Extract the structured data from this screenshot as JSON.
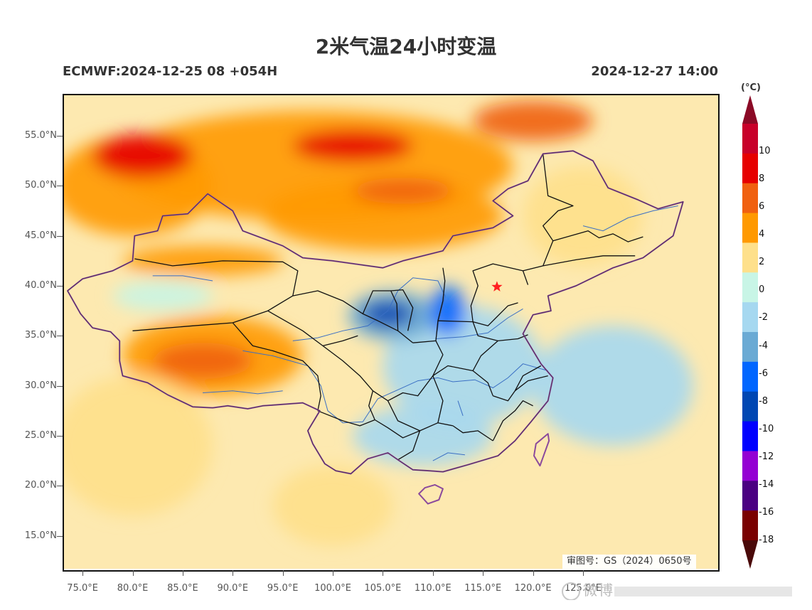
{
  "title": "2米气温24小时变温",
  "run_info": "ECMWF:2024-12-25 08 +054H",
  "valid_time": "2024-12-27 14:00",
  "approval_number": "审图号：GS（2024）0650号",
  "watermark": "微博",
  "colorbar": {
    "unit": "(°C)",
    "colors": [
      "#4a0a0a",
      "#7a0000",
      "#4b0082",
      "#9400d3",
      "#0000ff",
      "#0047b3",
      "#0066ff",
      "#6aaad4",
      "#a6d8f0",
      "#c8f5e6",
      "#fee08b",
      "#ff9900",
      "#f06010",
      "#e60000",
      "#c8002a",
      "#8b0a26"
    ],
    "labels": [
      {
        "text": "10",
        "value": 10
      },
      {
        "text": "8",
        "value": 8
      },
      {
        "text": "6",
        "value": 6
      },
      {
        "text": "4",
        "value": 4
      },
      {
        "text": "2",
        "value": 2
      },
      {
        "text": "0",
        "value": 0
      },
      {
        "text": "-2",
        "value": -2
      },
      {
        "text": "-4",
        "value": -4
      },
      {
        "text": "-6",
        "value": -6
      },
      {
        "text": "-8",
        "value": -8
      },
      {
        "text": "-10",
        "value": -10
      },
      {
        "text": "-12",
        "value": -12
      },
      {
        "text": "-14",
        "value": -14
      },
      {
        "text": "-16",
        "value": -16
      },
      {
        "text": "-18",
        "value": -18
      }
    ]
  },
  "map": {
    "extent": {
      "lon_min": 73,
      "lon_max": 138.5,
      "lat_min": 11.7,
      "lat_max": 59.2
    },
    "lat_ticks": [
      {
        "label": "55.0°N",
        "value": 55
      },
      {
        "label": "50.0°N",
        "value": 50
      },
      {
        "label": "45.0°N",
        "value": 45
      },
      {
        "label": "40.0°N",
        "value": 40
      },
      {
        "label": "35.0°N",
        "value": 35
      },
      {
        "label": "30.0°N",
        "value": 30
      },
      {
        "label": "25.0°N",
        "value": 25
      },
      {
        "label": "20.0°N",
        "value": 20
      },
      {
        "label": "15.0°N",
        "value": 15
      }
    ],
    "lon_ticks": [
      {
        "label": "75.0°E",
        "value": 75
      },
      {
        "label": "80.0°E",
        "value": 80
      },
      {
        "label": "85.0°E",
        "value": 85
      },
      {
        "label": "90.0°E",
        "value": 90
      },
      {
        "label": "95.0°E",
        "value": 95
      },
      {
        "label": "100.0°E",
        "value": 100
      },
      {
        "label": "105.0°E",
        "value": 105
      },
      {
        "label": "110.0°E",
        "value": 110
      },
      {
        "label": "115.0°E",
        "value": 115
      },
      {
        "label": "120.0°E",
        "value": 120
      },
      {
        "label": "125.0°E",
        "value": 125
      }
    ],
    "background_color": "#fde9b0",
    "colors": {
      "national_border": "#8b4a9c",
      "province_border": "#111111",
      "river": "#3a6fc4",
      "capital_marker": "#ff2020"
    },
    "capital": {
      "name": "北京",
      "lon": 116.4,
      "lat": 39.9
    },
    "temperature_regions": [
      {
        "name": "siberia-warm",
        "value": 3,
        "lon": 98,
        "lat": 52,
        "rx": 20,
        "ry": 5.5
      },
      {
        "name": "kazakh-warm",
        "value": 3,
        "lon": 80,
        "lat": 50,
        "rx": 8,
        "ry": 5
      },
      {
        "name": "mongolia-warm",
        "value": 3,
        "lon": 105,
        "lat": 47,
        "rx": 12,
        "ry": 3.5
      },
      {
        "name": "kazakh-hot",
        "value": 7,
        "lon": 81,
        "lat": 53,
        "rx": 5,
        "ry": 2.2
      },
      {
        "name": "altai-hot",
        "value": 7,
        "lon": 102,
        "lat": 54,
        "rx": 6,
        "ry": 1.6
      },
      {
        "name": "mongolia-hot",
        "value": 5,
        "lon": 107,
        "lat": 49.5,
        "rx": 5,
        "ry": 1.3
      },
      {
        "name": "xinjiang-warm",
        "value": 3,
        "lon": 87,
        "lat": 42.5,
        "rx": 8,
        "ry": 1.5
      },
      {
        "name": "tibet-warm",
        "value": 3,
        "lon": 88,
        "lat": 33,
        "rx": 9,
        "ry": 4
      },
      {
        "name": "tibet-hot",
        "value": 5,
        "lon": 87,
        "lat": 32.5,
        "rx": 5,
        "ry": 1.8
      },
      {
        "name": "tarim-cool",
        "value": -1,
        "lon": 83,
        "lat": 39,
        "rx": 5,
        "ry": 1.5
      },
      {
        "name": "east-china-cool",
        "value": -3,
        "lon": 113,
        "lat": 32,
        "rx": 8,
        "ry": 6
      },
      {
        "name": "south-china-cool",
        "value": -3,
        "lon": 109,
        "lat": 25,
        "rx": 7,
        "ry": 3
      },
      {
        "name": "yellow-river-cold",
        "value": -6,
        "lon": 106,
        "lat": 37,
        "rx": 4.5,
        "ry": 2.5
      },
      {
        "name": "shanxi-cold",
        "value": -7,
        "lon": 111.5,
        "lat": 37.5,
        "rx": 1.8,
        "ry": 2.5
      },
      {
        "name": "loess-very-cold",
        "value": -9,
        "lon": 105.5,
        "lat": 37.2,
        "rx": 2.5,
        "ry": 1.3
      },
      {
        "name": "sea-cool",
        "value": -3,
        "lon": 128,
        "lat": 30,
        "rx": 8,
        "ry": 6
      },
      {
        "name": "northeast-mild",
        "value": 1,
        "lon": 125,
        "lat": 47,
        "rx": 6,
        "ry": 5
      },
      {
        "name": "siberia-hot",
        "value": 5,
        "lon": 120,
        "lat": 56.5,
        "rx": 6,
        "ry": 2
      },
      {
        "name": "india-mild",
        "value": 1,
        "lon": 80,
        "lat": 24,
        "rx": 8,
        "ry": 7
      },
      {
        "name": "indochina-mild",
        "value": 1,
        "lon": 100,
        "lat": 18,
        "rx": 6,
        "ry": 4
      }
    ],
    "national_border": [
      [
        73.5,
        39.5
      ],
      [
        75,
        40.7
      ],
      [
        78,
        41.5
      ],
      [
        80,
        42.5
      ],
      [
        80.2,
        45
      ],
      [
        82.5,
        45.5
      ],
      [
        83,
        47
      ],
      [
        85.5,
        47.2
      ],
      [
        87.5,
        49.2
      ],
      [
        90,
        47.5
      ],
      [
        91,
        45.5
      ],
      [
        95,
        44
      ],
      [
        97,
        42.8
      ],
      [
        100,
        42.5
      ],
      [
        105,
        41.8
      ],
      [
        107,
        42.5
      ],
      [
        111,
        43.5
      ],
      [
        112,
        45
      ],
      [
        116,
        45.8
      ],
      [
        118,
        47
      ],
      [
        116,
        48.5
      ],
      [
        117.5,
        49.7
      ],
      [
        119.5,
        50.5
      ],
      [
        121,
        53.2
      ],
      [
        124,
        53.5
      ],
      [
        126,
        52.5
      ],
      [
        127.5,
        49.8
      ],
      [
        130.5,
        48.6
      ],
      [
        132.5,
        47.7
      ],
      [
        135,
        48.4
      ],
      [
        134,
        45
      ],
      [
        131,
        42.8
      ],
      [
        128,
        41.8
      ],
      [
        124.3,
        40
      ],
      [
        121.5,
        39
      ],
      [
        121.8,
        37.5
      ],
      [
        120,
        37.1
      ],
      [
        119,
        35.2
      ],
      [
        120.8,
        32.2
      ],
      [
        122,
        30.8
      ],
      [
        121.5,
        28.5
      ],
      [
        119.8,
        26.4
      ],
      [
        118.2,
        24.5
      ],
      [
        116.5,
        23
      ],
      [
        113.5,
        22.1
      ],
      [
        111,
        21.4
      ],
      [
        109.7,
        21.5
      ],
      [
        108,
        21.6
      ],
      [
        106.5,
        22.6
      ],
      [
        105.5,
        23.3
      ],
      [
        103.5,
        22.7
      ],
      [
        101.8,
        21.2
      ],
      [
        100.3,
        21.5
      ],
      [
        99.2,
        22.2
      ],
      [
        98,
        24.2
      ],
      [
        97.5,
        25.5
      ],
      [
        98.7,
        27.5
      ],
      [
        97,
        28.3
      ],
      [
        93,
        28
      ],
      [
        91.5,
        27.7
      ],
      [
        89.5,
        28
      ],
      [
        88,
        27.8
      ],
      [
        86,
        27.9
      ],
      [
        83.5,
        29.1
      ],
      [
        81.5,
        30.3
      ],
      [
        79,
        31
      ],
      [
        78.7,
        32.5
      ],
      [
        78.7,
        34.5
      ],
      [
        77.8,
        35.4
      ],
      [
        76,
        35.8
      ],
      [
        74.8,
        37.2
      ],
      [
        73.5,
        39.5
      ]
    ],
    "hainan": [
      [
        108.6,
        19.2
      ],
      [
        109.5,
        18.2
      ],
      [
        110.6,
        18.6
      ],
      [
        111,
        19.7
      ],
      [
        110.2,
        20.1
      ],
      [
        109.2,
        19.8
      ],
      [
        108.6,
        19.2
      ]
    ],
    "taiwan": [
      [
        120.1,
        23
      ],
      [
        120.7,
        22
      ],
      [
        121.6,
        24.5
      ],
      [
        121.5,
        25.2
      ],
      [
        120.3,
        24.2
      ],
      [
        120.1,
        23
      ]
    ],
    "province_borders": [
      [
        [
          80.2,
          42.7
        ],
        [
          84,
          42
        ],
        [
          89,
          42.5
        ],
        [
          95,
          42.4
        ],
        [
          96.5,
          41.5
        ],
        [
          96,
          39
        ],
        [
          93.5,
          37.5
        ],
        [
          90,
          36.3
        ],
        [
          86,
          36
        ],
        [
          80,
          35.5
        ]
      ],
      [
        [
          96,
          39
        ],
        [
          98.5,
          39.5
        ],
        [
          101,
          38.5
        ],
        [
          103,
          37.2
        ],
        [
          104.5,
          36.5
        ],
        [
          106.5,
          35.5
        ],
        [
          108,
          34.3
        ]
      ],
      [
        [
          93.5,
          37.5
        ],
        [
          97,
          35.5
        ],
        [
          99,
          34
        ],
        [
          101,
          34.5
        ],
        [
          102.5,
          35
        ]
      ],
      [
        [
          90,
          36.3
        ],
        [
          92,
          34
        ],
        [
          94,
          33.5
        ],
        [
          97,
          32.5
        ],
        [
          98.5,
          31
        ],
        [
          98.8,
          29
        ],
        [
          98.5,
          27.5
        ]
      ],
      [
        [
          99,
          34
        ],
        [
          101,
          32.5
        ],
        [
          102.7,
          31
        ],
        [
          104,
          29.5
        ],
        [
          105.5,
          28.5
        ],
        [
          107,
          29.3
        ],
        [
          108.5,
          29
        ],
        [
          110,
          31
        ]
      ],
      [
        [
          104,
          29.5
        ],
        [
          103.6,
          28
        ],
        [
          104.2,
          26.6
        ],
        [
          105.5,
          25.8
        ],
        [
          107,
          24.8
        ],
        [
          108.7,
          25.5
        ]
      ],
      [
        [
          98.5,
          27.5
        ],
        [
          101,
          26.5
        ],
        [
          102.7,
          26
        ],
        [
          104.2,
          26.6
        ]
      ],
      [
        [
          105.5,
          28.5
        ],
        [
          106.5,
          26.5
        ],
        [
          108.7,
          25.5
        ],
        [
          110.5,
          26.3
        ],
        [
          112,
          26
        ]
      ],
      [
        [
          108.7,
          25.5
        ],
        [
          108,
          23.5
        ],
        [
          106.5,
          22.6
        ]
      ],
      [
        [
          112,
          26
        ],
        [
          113,
          25.3
        ],
        [
          114.5,
          25.5
        ],
        [
          116,
          24.5
        ]
      ],
      [
        [
          110.5,
          26.3
        ],
        [
          111,
          28.5
        ],
        [
          110,
          31
        ],
        [
          111.5,
          32
        ],
        [
          114,
          31.5
        ],
        [
          115.5,
          30.3
        ],
        [
          116,
          29
        ]
      ],
      [
        [
          114,
          31.5
        ],
        [
          114.8,
          33
        ],
        [
          116.5,
          34.5
        ],
        [
          118.5,
          34.7
        ],
        [
          119.5,
          35.1
        ]
      ],
      [
        [
          116,
          29
        ],
        [
          117.5,
          28.5
        ],
        [
          118.2,
          29.5
        ],
        [
          119,
          31
        ],
        [
          120.8,
          32
        ]
      ],
      [
        [
          116,
          24.5
        ],
        [
          117,
          26.5
        ],
        [
          118.2,
          27.5
        ],
        [
          119,
          28.5
        ],
        [
          120,
          28
        ]
      ],
      [
        [
          118.2,
          29.5
        ],
        [
          119.5,
          30.5
        ],
        [
          121.5,
          31
        ]
      ],
      [
        [
          108,
          34.3
        ],
        [
          110.3,
          34.5
        ],
        [
          111,
          33.1
        ],
        [
          110,
          31
        ]
      ],
      [
        [
          110.3,
          34.5
        ],
        [
          110.5,
          36.5
        ],
        [
          111,
          38.5
        ],
        [
          111.2,
          40.5
        ],
        [
          111,
          41.8
        ]
      ],
      [
        [
          110.5,
          36.5
        ],
        [
          114,
          36.4
        ],
        [
          114.5,
          35
        ],
        [
          116.5,
          34.5
        ]
      ],
      [
        [
          114,
          36.4
        ],
        [
          115.5,
          36
        ],
        [
          116.3,
          36.8
        ],
        [
          117.5,
          38
        ],
        [
          118.5,
          38.3
        ]
      ],
      [
        [
          114,
          36.4
        ],
        [
          113.8,
          38
        ],
        [
          114.5,
          40
        ],
        [
          114,
          41.5
        ],
        [
          116,
          42.2
        ],
        [
          119,
          41.5
        ],
        [
          119.5,
          40.1
        ]
      ],
      [
        [
          106.5,
          35.5
        ],
        [
          106.4,
          38.2
        ],
        [
          105.8,
          39.5
        ],
        [
          107,
          39.6
        ],
        [
          108,
          37.8
        ],
        [
          107.5,
          35.5
        ]
      ],
      [
        [
          119,
          41.5
        ],
        [
          121,
          42
        ],
        [
          122,
          44.5
        ],
        [
          121,
          46
        ],
        [
          122.5,
          47.5
        ],
        [
          124,
          48
        ],
        [
          121.5,
          49
        ],
        [
          121,
          53.2
        ]
      ],
      [
        [
          121,
          42
        ],
        [
          124.3,
          42.6
        ],
        [
          127,
          43
        ],
        [
          130.2,
          43
        ]
      ],
      [
        [
          122,
          44.5
        ],
        [
          125.5,
          45.5
        ],
        [
          126.6,
          44.8
        ],
        [
          128,
          45.2
        ],
        [
          129.5,
          44.4
        ],
        [
          131,
          44.9
        ]
      ],
      [
        [
          103,
          37.2
        ],
        [
          104,
          39.5
        ],
        [
          105.8,
          39.5
        ]
      ]
    ],
    "rivers": [
      [
        [
          96,
          34.5
        ],
        [
          98.5,
          34.8
        ],
        [
          101,
          35.5
        ],
        [
          103.5,
          36
        ],
        [
          105.5,
          37.5
        ],
        [
          106.5,
          39.5
        ],
        [
          108,
          40.8
        ],
        [
          110.5,
          40.5
        ],
        [
          111.2,
          39
        ],
        [
          110.6,
          36.5
        ],
        [
          110.3,
          34.7
        ],
        [
          113,
          34.9
        ],
        [
          115.5,
          35.3
        ],
        [
          117.5,
          36.8
        ],
        [
          119,
          37.7
        ]
      ],
      [
        [
          91,
          33.5
        ],
        [
          94,
          33
        ],
        [
          97.5,
          32
        ],
        [
          98.8,
          30
        ],
        [
          99.5,
          27.5
        ],
        [
          101,
          26.3
        ],
        [
          103,
          26.4
        ],
        [
          104.5,
          28.7
        ],
        [
          106.5,
          29.6
        ],
        [
          108.5,
          30.5
        ],
        [
          110.5,
          30.8
        ],
        [
          112,
          30.4
        ],
        [
          114.2,
          30.6
        ],
        [
          116,
          29.8
        ],
        [
          117.5,
          30.8
        ],
        [
          119,
          32.2
        ],
        [
          121.5,
          31.5
        ]
      ],
      [
        [
          110,
          22.5
        ],
        [
          111.5,
          23.3
        ],
        [
          113.2,
          23.1
        ]
      ],
      [
        [
          112.5,
          28.5
        ],
        [
          113,
          27
        ]
      ],
      [
        [
          125,
          46
        ],
        [
          127,
          45.5
        ],
        [
          129.5,
          46.8
        ],
        [
          132,
          47.5
        ],
        [
          134.5,
          48
        ]
      ],
      [
        [
          82,
          41
        ],
        [
          85,
          41
        ],
        [
          88,
          40.5
        ]
      ],
      [
        [
          87,
          29.3
        ],
        [
          90,
          29.5
        ],
        [
          92.5,
          29.2
        ],
        [
          95,
          29.5
        ]
      ]
    ]
  }
}
